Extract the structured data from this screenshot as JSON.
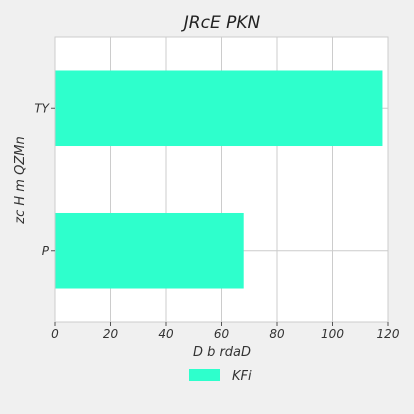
{
  "chart_data": {
    "type": "bar",
    "orientation": "horizontal",
    "title": "JRcE PKN",
    "xlabel": "D b rdaD",
    "ylabel": "zc H m QZMn",
    "categories": [
      "P",
      "TY"
    ],
    "series": [
      {
        "name": "KFi",
        "values": [
          68,
          118
        ]
      }
    ],
    "xlim": [
      0,
      120
    ],
    "xticks": [
      0,
      20,
      40,
      60,
      80,
      100,
      120
    ],
    "grid": true,
    "legend_position": "bottom"
  },
  "colors": {
    "bar": "#2effcc",
    "grid": "#cccccc",
    "plot_background": "#ffffff",
    "page_background": "#f0f0f0"
  }
}
